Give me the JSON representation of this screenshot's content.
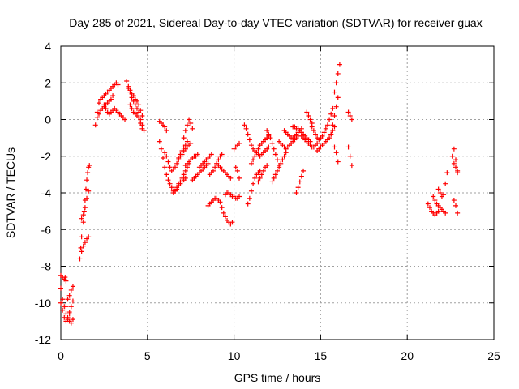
{
  "chart_data": {
    "type": "scatter",
    "title": "Day 285 of 2021, Sidereal Day-to-day VTEC variation (SDTVAR) for receiver guax",
    "xlabel": "GPS time / hours",
    "ylabel": "SDTVAR / TECUs",
    "xlim": [
      0,
      25
    ],
    "ylim": [
      -12,
      4
    ],
    "xticks": [
      0,
      5,
      10,
      15,
      20,
      25
    ],
    "xtick_labels": [
      "0",
      "5",
      "10",
      "15",
      "20",
      "25"
    ],
    "yticks": [
      -12,
      -10,
      -8,
      -6,
      -4,
      -2,
      0,
      2,
      4
    ],
    "ytick_labels": [
      "-12",
      "-10",
      "-8",
      "-6",
      "-4",
      "-2",
      "0",
      "2",
      "4"
    ],
    "grid": true,
    "marker": "+",
    "color": "#ff0000",
    "segments": [
      {
        "x": [
          0.0,
          0.1,
          0.2,
          0.25,
          0.3
        ],
        "y": [
          -8.5,
          -8.6,
          -8.7,
          -8.6,
          -8.8
        ]
      },
      {
        "x": [
          0.0,
          0.1,
          0.2,
          0.3,
          0.4,
          0.5,
          0.6,
          0.7
        ],
        "y": [
          -9.2,
          -9.8,
          -10.2,
          -10.6,
          -10.9,
          -11.0,
          -11.1,
          -10.9
        ]
      },
      {
        "x": [
          0.0,
          0.1,
          0.2,
          0.3,
          0.4,
          0.5
        ],
        "y": [
          -10.0,
          -10.4,
          -10.8,
          -11.0,
          -10.8,
          -10.5
        ]
      },
      {
        "x": [
          0.3,
          0.4,
          0.5,
          0.6,
          0.7
        ],
        "y": [
          -10.2,
          -9.8,
          -9.6,
          -9.3,
          -9.1
        ]
      },
      {
        "x": [
          0.5,
          0.6,
          0.7
        ],
        "y": [
          -10.6,
          -10.2,
          -9.9
        ]
      },
      {
        "x": [
          1.1,
          1.15,
          1.2,
          1.3,
          1.35,
          1.4,
          1.45,
          1.5,
          1.55,
          1.6,
          1.65
        ],
        "y": [
          -7.6,
          -7.0,
          -6.4,
          -5.6,
          -5.0,
          -4.4,
          -3.8,
          -3.3,
          -2.9,
          -2.6,
          -2.5
        ]
      },
      {
        "x": [
          1.2,
          1.3,
          1.4,
          1.5,
          1.6
        ],
        "y": [
          -7.2,
          -6.9,
          -6.7,
          -6.5,
          -6.4
        ]
      },
      {
        "x": [
          1.2,
          1.3,
          1.4,
          1.5,
          1.6
        ],
        "y": [
          -5.4,
          -5.2,
          -4.8,
          -4.3,
          -3.9
        ]
      },
      {
        "x": [
          2.0,
          2.1,
          2.2,
          2.3,
          2.4,
          2.5,
          2.6,
          2.7,
          2.8,
          2.9,
          3.0,
          3.1,
          3.2,
          3.3
        ],
        "y": [
          -0.3,
          0.4,
          0.9,
          1.1,
          1.2,
          1.3,
          1.4,
          1.5,
          1.6,
          1.7,
          1.8,
          1.9,
          2.0,
          1.9
        ]
      },
      {
        "x": [
          2.1,
          2.2,
          2.3,
          2.4,
          2.5,
          2.6,
          2.7,
          2.8,
          2.9,
          3.0
        ],
        "y": [
          0.1,
          0.3,
          0.5,
          0.6,
          0.7,
          0.8,
          0.9,
          1.0,
          1.1,
          1.3
        ]
      },
      {
        "x": [
          2.5,
          2.6,
          2.7,
          2.8,
          2.9,
          3.0,
          3.1,
          3.2,
          3.3,
          3.4,
          3.5,
          3.6,
          3.7
        ],
        "y": [
          0.8,
          0.6,
          0.4,
          0.3,
          0.4,
          0.5,
          0.6,
          0.5,
          0.4,
          0.3,
          0.2,
          0.1,
          0.0
        ]
      },
      {
        "x": [
          3.8,
          3.9,
          4.0,
          4.1,
          4.2,
          4.3,
          4.4,
          4.5
        ],
        "y": [
          2.1,
          1.8,
          1.5,
          1.2,
          1.0,
          0.8,
          0.6,
          0.4
        ]
      },
      {
        "x": [
          3.9,
          4.0,
          4.1,
          4.2,
          4.3,
          4.4,
          4.5,
          4.6,
          4.7
        ],
        "y": [
          1.7,
          1.6,
          1.4,
          1.3,
          1.1,
          1.0,
          0.8,
          0.5,
          0.2
        ]
      },
      {
        "x": [
          4.0,
          4.1,
          4.2,
          4.3,
          4.4,
          4.5,
          4.6,
          4.7
        ],
        "y": [
          0.8,
          0.6,
          0.4,
          0.3,
          0.2,
          0.1,
          -0.2,
          -0.5
        ]
      },
      {
        "x": [
          4.6,
          4.7,
          4.8
        ],
        "y": [
          0.0,
          -0.3,
          -0.6
        ]
      },
      {
        "x": [
          5.7,
          5.8,
          5.9,
          6.0,
          6.1
        ],
        "y": [
          -0.1,
          -0.2,
          -0.3,
          -0.4,
          -0.6
        ]
      },
      {
        "x": [
          5.7,
          5.8,
          5.9,
          6.0,
          6.1,
          6.2,
          6.3,
          6.4,
          6.5,
          6.6,
          6.7,
          6.8,
          6.9,
          7.0,
          7.1,
          7.2
        ],
        "y": [
          -1.2,
          -1.6,
          -2.1,
          -2.6,
          -3.0,
          -3.3,
          -3.5,
          -3.7,
          -3.9,
          -3.9,
          -3.8,
          -3.6,
          -3.5,
          -3.4,
          -3.3,
          -3.2
        ]
      },
      {
        "x": [
          6.0,
          6.1,
          6.2,
          6.3,
          6.4,
          6.5,
          6.6,
          6.7,
          6.8,
          6.9,
          7.0,
          7.1,
          7.2,
          7.3,
          7.4,
          7.5
        ],
        "y": [
          -1.8,
          -2.0,
          -2.3,
          -2.6,
          -2.8,
          -2.7,
          -2.6,
          -2.4,
          -2.2,
          -2.0,
          -1.9,
          -1.7,
          -1.6,
          -1.5,
          -1.4,
          -1.3
        ]
      },
      {
        "x": [
          6.5,
          6.6,
          6.7,
          6.8,
          6.9,
          7.0,
          7.1,
          7.2,
          7.3,
          7.4
        ],
        "y": [
          -4.0,
          -3.9,
          -3.7,
          -3.5,
          -3.4,
          -3.2,
          -3.0,
          -2.8,
          -2.6,
          -2.4
        ]
      },
      {
        "x": [
          6.8,
          6.9,
          7.0,
          7.1,
          7.2,
          7.3
        ],
        "y": [
          -2.1,
          -1.9,
          -1.7,
          -1.5,
          -1.4,
          -1.2
        ]
      },
      {
        "x": [
          7.1,
          7.2,
          7.3,
          7.4,
          7.5,
          7.6
        ],
        "y": [
          -1.0,
          -0.6,
          -0.3,
          0.0,
          -0.2,
          -0.5
        ]
      },
      {
        "x": [
          7.2,
          7.3,
          7.4,
          7.5,
          7.6,
          7.7,
          7.8,
          7.9
        ],
        "y": [
          -2.5,
          -2.4,
          -2.3,
          -2.2,
          -2.1,
          -2.0,
          -2.0,
          -1.9
        ]
      },
      {
        "x": [
          7.6,
          7.7,
          7.8,
          7.9,
          8.0,
          8.1,
          8.2,
          8.3,
          8.4,
          8.5
        ],
        "y": [
          -3.3,
          -3.2,
          -3.1,
          -3.0,
          -2.9,
          -2.8,
          -2.7,
          -2.6,
          -2.5,
          -2.4
        ]
      },
      {
        "x": [
          8.0,
          8.1,
          8.2,
          8.3,
          8.4,
          8.5,
          8.6,
          8.7
        ],
        "y": [
          -2.6,
          -2.5,
          -2.4,
          -2.3,
          -2.2,
          -2.1,
          -2.0,
          -1.9
        ]
      },
      {
        "x": [
          8.5,
          8.6,
          8.7,
          8.8,
          8.9,
          9.0,
          9.1
        ],
        "y": [
          -4.7,
          -4.6,
          -4.5,
          -4.4,
          -4.3,
          -4.3,
          -4.4
        ]
      },
      {
        "x": [
          8.6,
          8.7,
          8.8,
          8.9,
          9.0,
          9.1,
          9.2,
          9.3
        ],
        "y": [
          -3.0,
          -2.9,
          -2.8,
          -2.6,
          -2.4,
          -2.2,
          -2.0,
          -1.9
        ]
      },
      {
        "x": [
          9.0,
          9.1,
          9.2,
          9.3,
          9.4,
          9.5,
          9.6,
          9.7,
          9.8
        ],
        "y": [
          -2.4,
          -2.5,
          -2.6,
          -2.7,
          -2.8,
          -2.9,
          -3.0,
          -3.1,
          -3.2
        ]
      },
      {
        "x": [
          9.2,
          9.3,
          9.4,
          9.5,
          9.6,
          9.7,
          9.8,
          9.9
        ],
        "y": [
          -4.5,
          -4.8,
          -5.1,
          -5.3,
          -5.5,
          -5.6,
          -5.7,
          -5.6
        ]
      },
      {
        "x": [
          9.5,
          9.6,
          9.7,
          9.8,
          9.9,
          10.0,
          10.1,
          10.2,
          10.3
        ],
        "y": [
          -4.1,
          -4.0,
          -4.0,
          -4.1,
          -4.2,
          -4.2,
          -4.3,
          -4.3,
          -4.2
        ]
      },
      {
        "x": [
          10.0,
          10.1,
          10.2,
          10.3
        ],
        "y": [
          -1.6,
          -1.5,
          -1.4,
          -1.3
        ]
      },
      {
        "x": [
          10.1,
          10.2,
          10.3
        ],
        "y": [
          -2.6,
          -2.8,
          -3.2
        ]
      },
      {
        "x": [
          10.6,
          10.7,
          10.8,
          10.9,
          11.0,
          11.1,
          11.2,
          11.3,
          11.4,
          11.5,
          11.6,
          11.7,
          11.8,
          11.9,
          12.0
        ],
        "y": [
          -0.3,
          -0.5,
          -0.8,
          -1.1,
          -1.4,
          -1.6,
          -1.7,
          -1.8,
          -1.9,
          -2.0,
          -1.9,
          -1.8,
          -1.7,
          -1.6,
          -1.5
        ]
      },
      {
        "x": [
          10.8,
          10.9,
          11.0,
          11.1,
          11.2,
          11.3,
          11.4,
          11.5
        ],
        "y": [
          -4.6,
          -4.3,
          -3.9,
          -3.5,
          -3.2,
          -3.0,
          -2.9,
          -2.8
        ]
      },
      {
        "x": [
          11.0,
          11.1,
          11.2,
          11.3,
          11.4,
          11.5,
          11.6,
          11.7,
          11.8,
          11.9,
          12.0
        ],
        "y": [
          -2.4,
          -2.2,
          -2.0,
          -1.8,
          -1.6,
          -1.4,
          -1.3,
          -1.2,
          -1.1,
          -1.0,
          -0.9
        ]
      },
      {
        "x": [
          11.4,
          11.5,
          11.6,
          11.7,
          11.8,
          11.9
        ],
        "y": [
          -3.4,
          -3.2,
          -3.0,
          -2.8,
          -2.6,
          -2.5
        ]
      },
      {
        "x": [
          11.9,
          12.0,
          12.1,
          12.2,
          12.3,
          12.4,
          12.5,
          12.6
        ],
        "y": [
          -0.6,
          -0.8,
          -1.0,
          -1.3,
          -1.6,
          -1.9,
          -2.2,
          -2.5
        ]
      },
      {
        "x": [
          12.2,
          12.3,
          12.4,
          12.5,
          12.6,
          12.7,
          12.8,
          12.9,
          13.0
        ],
        "y": [
          -3.4,
          -3.2,
          -3.0,
          -2.8,
          -2.6,
          -2.4,
          -2.2,
          -2.0,
          -1.8
        ]
      },
      {
        "x": [
          12.6,
          12.7,
          12.8,
          12.9,
          13.0,
          13.1,
          13.2,
          13.3,
          13.4,
          13.5,
          13.6,
          13.7
        ],
        "y": [
          -1.2,
          -1.3,
          -1.4,
          -1.5,
          -1.6,
          -1.5,
          -1.4,
          -1.3,
          -1.2,
          -1.1,
          -1.0,
          -0.9
        ]
      },
      {
        "x": [
          12.9,
          13.0,
          13.1,
          13.2,
          13.3,
          13.4,
          13.5,
          13.6,
          13.7,
          13.8,
          13.9
        ],
        "y": [
          -0.6,
          -0.7,
          -0.8,
          -0.9,
          -1.0,
          -1.0,
          -0.9,
          -0.8,
          -0.7,
          -0.6,
          -0.5
        ]
      },
      {
        "x": [
          13.4,
          13.5,
          13.6,
          13.7,
          13.8,
          13.9,
          14.0,
          14.1,
          14.2,
          14.3,
          14.4
        ],
        "y": [
          -0.4,
          -0.4,
          -0.5,
          -0.5,
          -0.6,
          -0.7,
          -0.8,
          -0.9,
          -1.0,
          -1.1,
          -1.2
        ]
      },
      {
        "x": [
          13.9,
          14.0,
          14.1,
          14.2,
          14.3,
          14.4,
          14.5,
          14.6,
          14.7,
          14.8
        ],
        "y": [
          -0.9,
          -1.0,
          -1.1,
          -1.2,
          -1.3,
          -1.4,
          -1.5,
          -1.5,
          -1.4,
          -1.3
        ]
      },
      {
        "x": [
          13.6,
          13.7,
          13.8,
          13.9,
          14.0
        ],
        "y": [
          -4.0,
          -3.7,
          -3.4,
          -3.1,
          -2.8
        ]
      },
      {
        "x": [
          14.2,
          14.3,
          14.4,
          14.5
        ],
        "y": [
          0.4,
          0.2,
          0.0,
          -0.2
        ]
      },
      {
        "x": [
          14.5,
          14.6,
          14.7,
          14.8,
          14.9,
          15.0,
          15.1,
          15.2,
          15.3,
          15.4,
          15.5,
          15.6,
          15.7
        ],
        "y": [
          -0.4,
          -0.6,
          -0.8,
          -1.0,
          -1.1,
          -1.0,
          -0.9,
          -0.7,
          -0.5,
          -0.3,
          0.0,
          0.3,
          0.6
        ]
      },
      {
        "x": [
          14.8,
          14.9,
          15.0,
          15.1,
          15.2,
          15.3,
          15.4,
          15.5,
          15.6,
          15.7,
          15.8
        ],
        "y": [
          -1.7,
          -1.6,
          -1.5,
          -1.4,
          -1.3,
          -1.2,
          -1.1,
          -1.0,
          -0.8,
          -0.6,
          -0.4
        ]
      },
      {
        "x": [
          15.6,
          15.7,
          15.8,
          15.9,
          16.0
        ],
        "y": [
          -0.8,
          -0.3,
          0.2,
          0.7,
          1.2
        ]
      },
      {
        "x": [
          15.8,
          15.9,
          16.0,
          16.1
        ],
        "y": [
          1.5,
          2.0,
          2.5,
          3.0
        ]
      },
      {
        "x": [
          15.8,
          15.9,
          16.0
        ],
        "y": [
          -1.5,
          -1.8,
          -2.3
        ]
      },
      {
        "x": [
          16.6,
          16.7,
          16.8
        ],
        "y": [
          0.4,
          0.2,
          0.0
        ]
      },
      {
        "x": [
          16.6,
          16.7,
          16.8
        ],
        "y": [
          -1.5,
          -2.0,
          -2.5
        ]
      },
      {
        "x": [
          21.2,
          21.3,
          21.4,
          21.5,
          21.6,
          21.7,
          21.8
        ],
        "y": [
          -4.6,
          -4.8,
          -5.0,
          -5.1,
          -5.2,
          -5.1,
          -5.0
        ]
      },
      {
        "x": [
          21.5,
          21.6,
          21.7,
          21.8,
          21.9,
          22.0,
          22.1,
          22.2
        ],
        "y": [
          -4.2,
          -4.4,
          -4.6,
          -4.7,
          -4.8,
          -4.9,
          -5.0,
          -5.1
        ]
      },
      {
        "x": [
          21.8,
          21.9,
          22.0,
          22.1,
          22.2,
          22.3
        ],
        "y": [
          -3.8,
          -4.0,
          -4.2,
          -4.1,
          -3.5,
          -2.9
        ]
      },
      {
        "x": [
          22.7,
          22.8,
          22.9
        ],
        "y": [
          -1.6,
          -2.2,
          -2.8
        ]
      },
      {
        "x": [
          22.6,
          22.7,
          22.8,
          22.9
        ],
        "y": [
          -2.0,
          -2.4,
          -2.6,
          -2.9
        ]
      },
      {
        "x": [
          22.7,
          22.8,
          22.9
        ],
        "y": [
          -4.4,
          -4.7,
          -5.1
        ]
      }
    ]
  }
}
